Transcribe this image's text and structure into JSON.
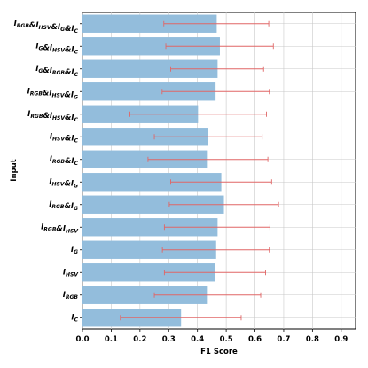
{
  "chart_data": {
    "type": "bar",
    "orientation": "horizontal",
    "xlabel": "F1 Score",
    "ylabel": "Input",
    "xlim": [
      0.0,
      0.95
    ],
    "xticks": [
      0.0,
      0.1,
      0.2,
      0.3,
      0.4,
      0.5,
      0.6,
      0.7,
      0.8,
      0.9
    ],
    "grid": true,
    "bar_color": "#93bddc",
    "error_color": "#e06666",
    "categories": [
      {
        "parts": [
          {
            "t": "I",
            "s": "RGB"
          },
          {
            "t": "&I",
            "s": "HSV"
          },
          {
            "t": "&I",
            "s": "G"
          },
          {
            "t": "&I",
            "s": "C"
          }
        ],
        "value": 0.467,
        "err_low": 0.283,
        "err_high": 0.648
      },
      {
        "parts": [
          {
            "t": "I",
            "s": "G"
          },
          {
            "t": "&I",
            "s": "HSV"
          },
          {
            "t": "&I",
            "s": "C"
          }
        ],
        "value": 0.478,
        "err_low": 0.29,
        "err_high": 0.664
      },
      {
        "parts": [
          {
            "t": "I",
            "s": "G"
          },
          {
            "t": "&I",
            "s": "RGB"
          },
          {
            "t": "&I",
            "s": "C"
          }
        ],
        "value": 0.47,
        "err_low": 0.307,
        "err_high": 0.63
      },
      {
        "parts": [
          {
            "t": "I",
            "s": "RGB"
          },
          {
            "t": "&I",
            "s": "HSV"
          },
          {
            "t": "&I",
            "s": "G"
          }
        ],
        "value": 0.463,
        "err_low": 0.277,
        "err_high": 0.65
      },
      {
        "parts": [
          {
            "t": "I",
            "s": "RGB"
          },
          {
            "t": "&I",
            "s": "HSV"
          },
          {
            "t": "&I",
            "s": "C"
          }
        ],
        "value": 0.402,
        "err_low": 0.165,
        "err_high": 0.64
      },
      {
        "parts": [
          {
            "t": "I",
            "s": "HSV"
          },
          {
            "t": "&I",
            "s": "C"
          }
        ],
        "value": 0.438,
        "err_low": 0.25,
        "err_high": 0.625
      },
      {
        "parts": [
          {
            "t": "I",
            "s": "RGB"
          },
          {
            "t": "&I",
            "s": "C"
          }
        ],
        "value": 0.436,
        "err_low": 0.228,
        "err_high": 0.645
      },
      {
        "parts": [
          {
            "t": "I",
            "s": "HSV"
          },
          {
            "t": "&I",
            "s": "G"
          }
        ],
        "value": 0.483,
        "err_low": 0.307,
        "err_high": 0.658
      },
      {
        "parts": [
          {
            "t": "I",
            "s": "RGB"
          },
          {
            "t": "&I",
            "s": "G"
          }
        ],
        "value": 0.492,
        "err_low": 0.302,
        "err_high": 0.682
      },
      {
        "parts": [
          {
            "t": "I",
            "s": "RGB"
          },
          {
            "t": "&I",
            "s": "HSV"
          }
        ],
        "value": 0.47,
        "err_low": 0.285,
        "err_high": 0.652
      },
      {
        "parts": [
          {
            "t": "I",
            "s": "G"
          }
        ],
        "value": 0.465,
        "err_low": 0.278,
        "err_high": 0.65
      },
      {
        "parts": [
          {
            "t": "I",
            "s": "HSV"
          }
        ],
        "value": 0.462,
        "err_low": 0.285,
        "err_high": 0.637
      },
      {
        "parts": [
          {
            "t": "I",
            "s": "RGB"
          }
        ],
        "value": 0.436,
        "err_low": 0.25,
        "err_high": 0.62
      },
      {
        "parts": [
          {
            "t": "I",
            "s": "C"
          }
        ],
        "value": 0.343,
        "err_low": 0.132,
        "err_high": 0.552
      }
    ]
  }
}
